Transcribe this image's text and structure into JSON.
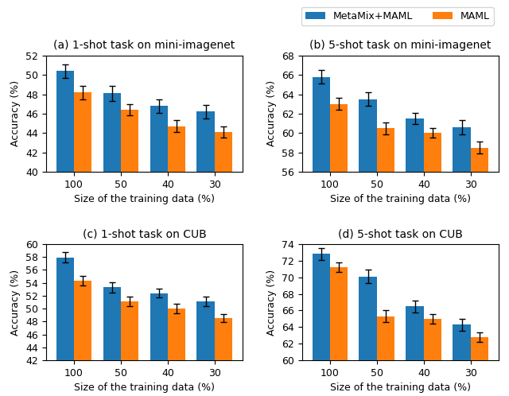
{
  "chart_data": [
    {
      "type": "bar",
      "title": "(a) 1-shot task on mini-imagenet",
      "xlabel": "Size of the training data (%)",
      "ylabel": "Accuracy (%)",
      "categories": [
        "100",
        "50",
        "40",
        "30"
      ],
      "series": [
        {
          "name": "MetaMix+MAML",
          "values": [
            50.4,
            48.1,
            46.8,
            46.2
          ],
          "errors": [
            0.7,
            0.8,
            0.7,
            0.7
          ]
        },
        {
          "name": "MAML",
          "values": [
            48.2,
            46.4,
            44.7,
            44.1
          ],
          "errors": [
            0.7,
            0.6,
            0.6,
            0.6
          ]
        }
      ],
      "ylim": [
        40,
        52
      ],
      "yticks": [
        40,
        42,
        44,
        46,
        48,
        50,
        52
      ],
      "legend": "upper right"
    },
    {
      "type": "bar",
      "title": "(b) 5-shot task on mini-imagenet",
      "xlabel": "Size of the training data (%)",
      "ylabel": "Accuracy (%)",
      "categories": [
        "100",
        "50",
        "40",
        "30"
      ],
      "series": [
        {
          "name": "MetaMix+MAML",
          "values": [
            65.8,
            63.5,
            61.5,
            60.6
          ],
          "errors": [
            0.7,
            0.7,
            0.6,
            0.7
          ]
        },
        {
          "name": "MAML",
          "values": [
            63.0,
            60.5,
            60.0,
            58.5
          ],
          "errors": [
            0.6,
            0.6,
            0.5,
            0.6
          ]
        }
      ],
      "ylim": [
        56,
        68
      ],
      "yticks": [
        56,
        58,
        60,
        62,
        64,
        66,
        68
      ]
    },
    {
      "type": "bar",
      "title": "(c) 1-shot task on CUB",
      "xlabel": "Size of the training data (%)",
      "ylabel": "Accuracy (%)",
      "categories": [
        "100",
        "50",
        "40",
        "30"
      ],
      "series": [
        {
          "name": "MetaMix+MAML",
          "values": [
            57.9,
            53.3,
            52.4,
            51.1
          ],
          "errors": [
            0.8,
            0.8,
            0.7,
            0.7
          ]
        },
        {
          "name": "MAML",
          "values": [
            54.3,
            51.1,
            50.0,
            48.5
          ],
          "errors": [
            0.7,
            0.7,
            0.7,
            0.6
          ]
        }
      ],
      "ylim": [
        42,
        60
      ],
      "yticks": [
        42,
        44,
        46,
        48,
        50,
        52,
        54,
        56,
        58,
        60
      ]
    },
    {
      "type": "bar",
      "title": "(d) 5-shot task on CUB",
      "xlabel": "Size of the training data (%)",
      "ylabel": "Accuracy (%)",
      "categories": [
        "100",
        "50",
        "40",
        "30"
      ],
      "series": [
        {
          "name": "MetaMix+MAML",
          "values": [
            72.8,
            70.1,
            66.5,
            64.3
          ],
          "errors": [
            0.7,
            0.8,
            0.7,
            0.7
          ]
        },
        {
          "name": "MAML",
          "values": [
            71.2,
            65.3,
            65.0,
            62.8
          ],
          "errors": [
            0.6,
            0.7,
            0.6,
            0.6
          ]
        }
      ],
      "ylim": [
        60,
        74
      ],
      "yticks": [
        60,
        62,
        64,
        66,
        68,
        70,
        72,
        74
      ]
    }
  ]
}
